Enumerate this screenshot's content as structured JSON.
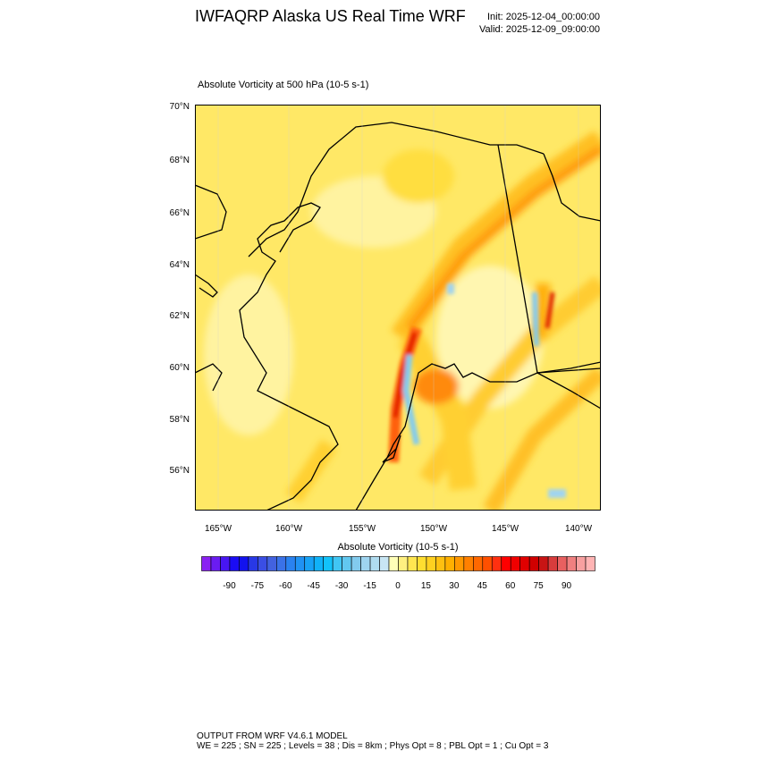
{
  "header": {
    "title": "IWFAQRP Alaska US Real Time WRF",
    "init": "Init: 2025-12-04_00:00:00",
    "valid": "Valid: 2025-12-09_09:00:00"
  },
  "chart_data": {
    "type": "heatmap",
    "title": "Absolute Vorticity at 500 hPa   (10-5 s-1)",
    "lat_ticks": [
      "70°N",
      "68°N",
      "66°N",
      "64°N",
      "62°N",
      "60°N",
      "58°N",
      "56°N"
    ],
    "lon_ticks": [
      "165°W",
      "160°W",
      "155°W",
      "150°W",
      "145°W",
      "140°W"
    ],
    "colorbar": {
      "title": "Absolute Vorticity  (10-5 s-1)",
      "labels": [
        "-90",
        "-75",
        "-60",
        "-45",
        "-30",
        "-15",
        "0",
        "15",
        "30",
        "45",
        "60",
        "75",
        "90"
      ],
      "range": [
        -105,
        105
      ],
      "step": 5,
      "colors": [
        "#8a20f2",
        "#6a1cf2",
        "#4816f2",
        "#1a0cf4",
        "#1212ee",
        "#2838e6",
        "#3a4ee4",
        "#4262e0",
        "#3a72e8",
        "#2a82f0",
        "#2092f4",
        "#18a2f6",
        "#10b2f8",
        "#12c2fa",
        "#40c6f4",
        "#62c8f0",
        "#82cbee",
        "#9ed4f0",
        "#b0dcf0",
        "#c8e6f4",
        "#ffffb8",
        "#fff080",
        "#ffe650",
        "#ffde30",
        "#ffd020",
        "#ffc010",
        "#ffb000",
        "#ff9800",
        "#ff8000",
        "#ff6800",
        "#ff5000",
        "#ff3010",
        "#ff0000",
        "#f00000",
        "#e00000",
        "#d00000",
        "#c81414",
        "#d83c3c",
        "#e86060",
        "#f08080",
        "#f8a0a0",
        "#ffb4b4"
      ]
    }
  },
  "footer": {
    "line1": "OUTPUT FROM WRF V4.6.1 MODEL",
    "line2": "WE = 225 ; SN = 225 ; Levels = 38 ; Dis = 8km ; Phys Opt = 8 ; PBL Opt = 1 ; Cu Opt = 3"
  }
}
